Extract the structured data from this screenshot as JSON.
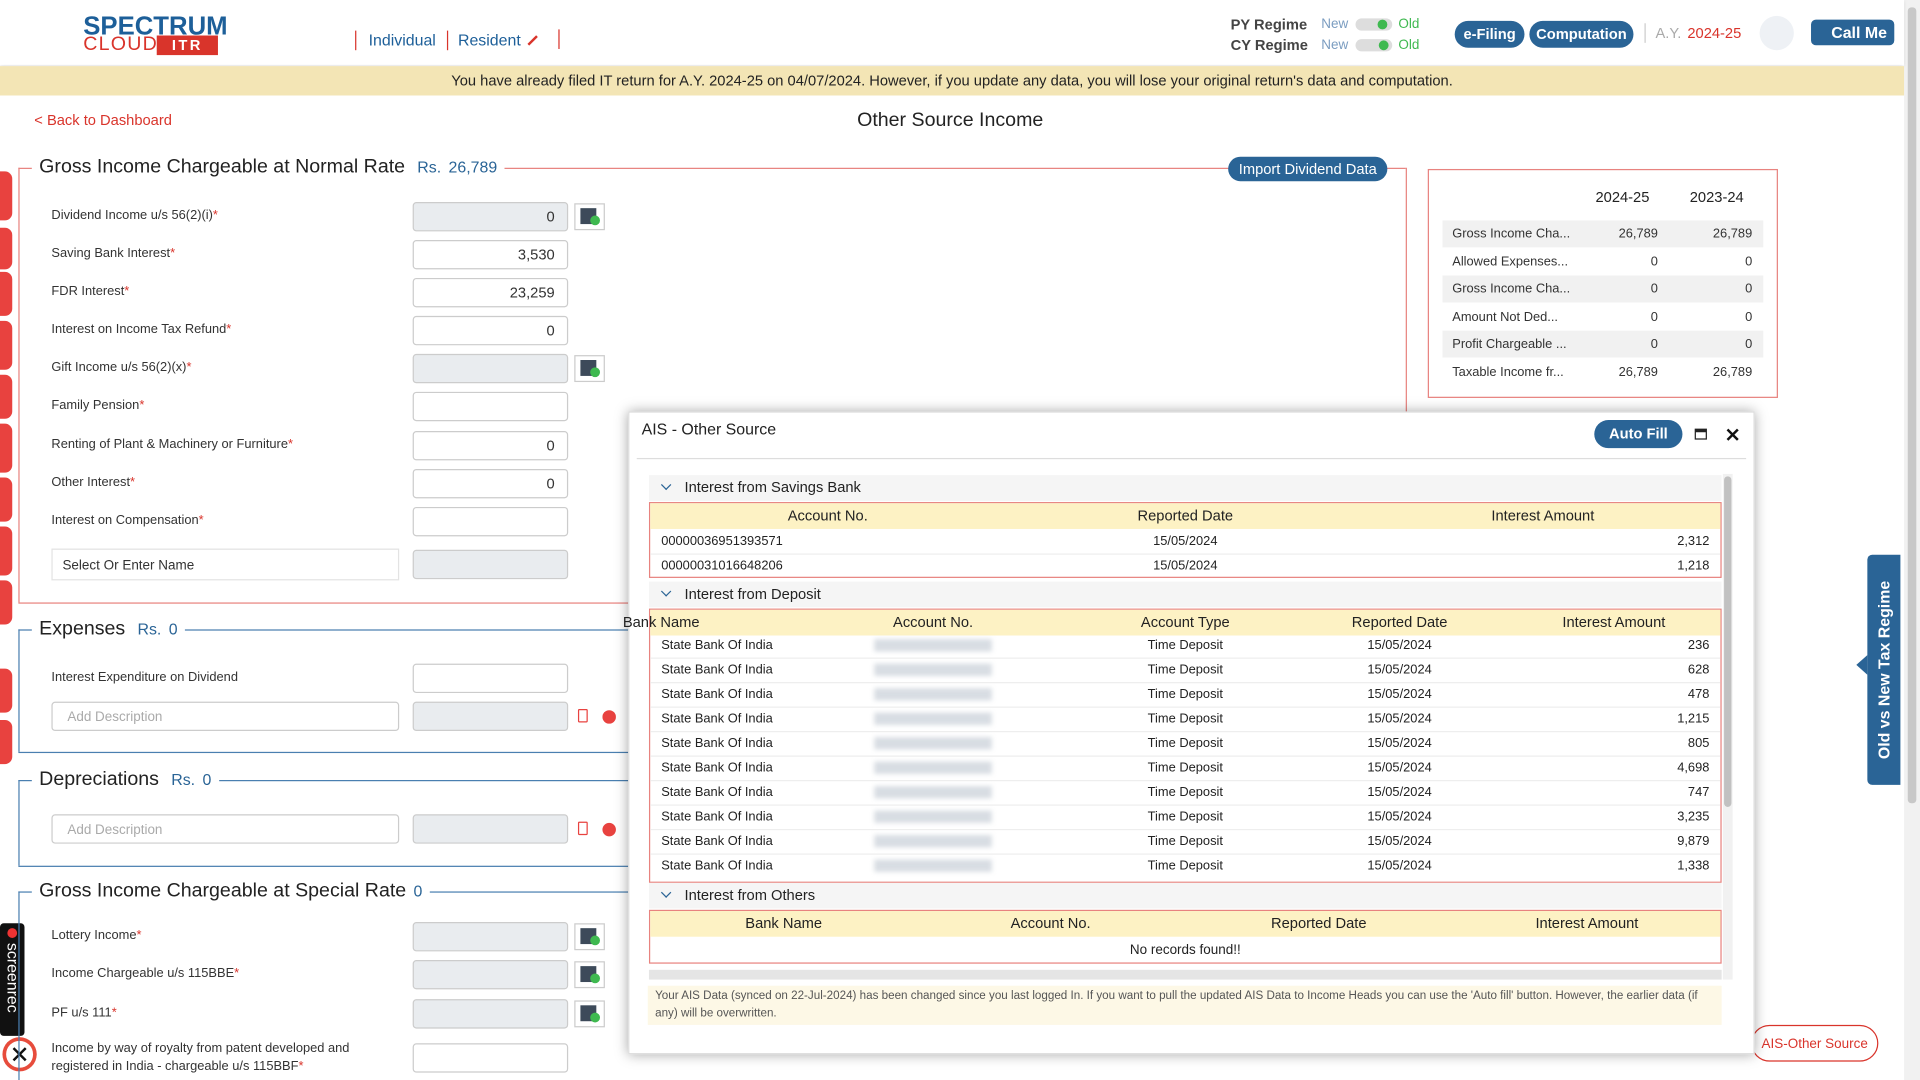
{
  "header": {
    "brand_top": "SPECTRUM",
    "brand_bottom": "CLOUD",
    "brand_tag": "ITR",
    "taxpayer_type": "Individual",
    "residency": "Resident",
    "regimes": [
      {
        "label": "PY Regime",
        "options": [
          "New",
          "Old"
        ]
      },
      {
        "label": "CY Regime",
        "options": [
          "New",
          "Old"
        ]
      }
    ],
    "efiling": "e-Filing",
    "computation": "Computation",
    "ay_label": "A.Y.",
    "ay": "2024-25",
    "call_me": "Call Me"
  },
  "banner": "You have already filed IT return for A.Y. 2024-25 on 04/07/2024. However, if you update any data, you will lose your original return's data and computation.",
  "page": {
    "back": "< Back to Dashboard",
    "title": "Other Source Income"
  },
  "required_mark": "*",
  "sections": [
    {
      "title": "Gross Income Chargeable at Normal Rate",
      "amount_prefix": "Rs.",
      "amount": "26,789",
      "action": "Import Dividend Data",
      "fields": [
        {
          "label": "Dividend Income u/s 56(2)(i)",
          "required": true,
          "value": "0",
          "readonly": true,
          "calculator": true
        },
        {
          "label": "Saving Bank Interest",
          "required": true,
          "value": "3,530"
        },
        {
          "label": "FDR Interest",
          "required": true,
          "value": "23,259"
        },
        {
          "label": "Interest on Income Tax Refund",
          "required": true,
          "value": "0"
        },
        {
          "label": "Gift Income u/s 56(2)(x)",
          "required": true,
          "readonly": true,
          "calculator": true
        },
        {
          "label": "Family Pension",
          "required": true
        },
        {
          "label": "Renting of Plant & Machinery or Furniture",
          "required": true,
          "value": "0"
        },
        {
          "label": "Other Interest",
          "required": true,
          "value": "0"
        },
        {
          "label": "Interest on Compensation",
          "required": true
        },
        {
          "select": "Select Or Enter Name",
          "readonly": true
        }
      ]
    },
    {
      "title": "Expenses",
      "amount_prefix": "Rs.",
      "amount": "0",
      "fields": [
        {
          "label": "Interest Expenditure on Dividend"
        },
        {
          "placeholder": "Add Description",
          "readonly": true,
          "removable": true
        }
      ]
    },
    {
      "title": "Depreciations",
      "amount_prefix": "Rs.",
      "amount": "0",
      "fields": [
        {
          "placeholder": "Add Description",
          "readonly": true,
          "removable": true
        }
      ]
    },
    {
      "title": "Gross Income Chargeable at Special Rate",
      "amount": "0",
      "fields": [
        {
          "label": "Lottery Income",
          "required": true,
          "readonly": true,
          "calculator": true
        },
        {
          "label": "Income Chargeable u/s 115BBE",
          "required": true,
          "readonly": true,
          "calculator": true
        },
        {
          "label": "PF u/s 111",
          "required": true,
          "readonly": true,
          "calculator": true
        },
        {
          "label": "Income by way of royalty from patent developed and registered in India - chargeable u/s 115BBF",
          "required": true
        }
      ]
    }
  ],
  "summary": {
    "columns": [
      "2024-25",
      "2023-24"
    ],
    "rows": [
      {
        "label": "Gross Income Cha...",
        "values": [
          "26,789",
          "26,789"
        ]
      },
      {
        "label": "Allowed Expenses...",
        "values": [
          "0",
          "0"
        ]
      },
      {
        "label": "Gross Income Cha...",
        "values": [
          "0",
          "0"
        ]
      },
      {
        "label": "Amount Not Ded...",
        "values": [
          "0",
          "0"
        ]
      },
      {
        "label": "Profit Chargeable ...",
        "values": [
          "0",
          "0"
        ]
      },
      {
        "label": "Taxable Income fr...",
        "values": [
          "26,789",
          "26,789"
        ]
      }
    ]
  },
  "dialog": {
    "title": "AIS - Other Source",
    "auto_fill": "Auto Fill",
    "groups": [
      {
        "title": "Interest from Savings Bank",
        "columns": [
          "Account No.",
          "Reported Date",
          "Interest Amount"
        ],
        "rows": [
          [
            "00000036951393571",
            "15/05/2024",
            "2,312"
          ],
          [
            "00000031016648206",
            "15/05/2024",
            "1,218"
          ]
        ]
      },
      {
        "title": "Interest from Deposit",
        "columns": [
          "Bank Name",
          "Account No.",
          "Account Type",
          "Reported Date",
          "Interest Amount"
        ],
        "rows": [
          [
            "State Bank Of India",
            null,
            "Time Deposit",
            "15/05/2024",
            "236"
          ],
          [
            "State Bank Of India",
            null,
            "Time Deposit",
            "15/05/2024",
            "628"
          ],
          [
            "State Bank Of India",
            null,
            "Time Deposit",
            "15/05/2024",
            "478"
          ],
          [
            "State Bank Of India",
            null,
            "Time Deposit",
            "15/05/2024",
            "1,215"
          ],
          [
            "State Bank Of India",
            null,
            "Time Deposit",
            "15/05/2024",
            "805"
          ],
          [
            "State Bank Of India",
            null,
            "Time Deposit",
            "15/05/2024",
            "4,698"
          ],
          [
            "State Bank Of India",
            null,
            "Time Deposit",
            "15/05/2024",
            "747"
          ],
          [
            "State Bank Of India",
            null,
            "Time Deposit",
            "15/05/2024",
            "3,235"
          ],
          [
            "State Bank Of India",
            null,
            "Time Deposit",
            "15/05/2024",
            "9,879"
          ],
          [
            "State Bank Of India",
            null,
            "Time Deposit",
            "15/05/2024",
            "1,338"
          ]
        ]
      },
      {
        "title": "Interest from Others",
        "columns": [
          "Bank Name",
          "Account No.",
          "Reported Date",
          "Interest Amount"
        ],
        "rows": [],
        "empty_text": "No records found!!"
      }
    ],
    "note": "Your AIS Data (synced on 22-Jul-2024) has been changed since you last logged In. If you want to pull the updated AIS Data to Income Heads you can use the 'Auto fill' button. However, the earlier data (if any) will be overwritten."
  },
  "side_tab": "Old vs New Tax Regime",
  "ais_button": "AIS-Other Source",
  "screenrec": "screenrec"
}
